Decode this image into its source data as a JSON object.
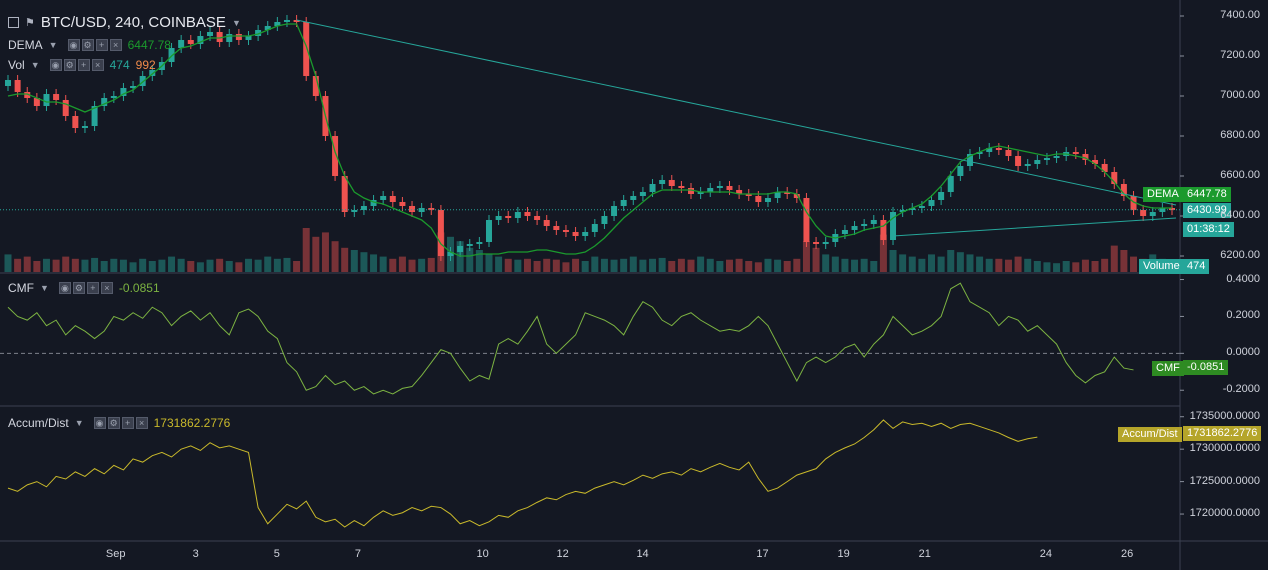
{
  "header": {
    "symbol_title": "BTC/USD, 240, COINBASE",
    "ind_dema": "DEMA",
    "ind_dema_value": "6447.78",
    "ind_vol": "Vol",
    "ind_vol_value_a": "474",
    "ind_vol_value_b": "992"
  },
  "cmf_pane": {
    "label": "CMF",
    "value": "-0.0851",
    "tag": "CMF",
    "tag_value": "-0.0851"
  },
  "ad_pane": {
    "label": "Accum/Dist",
    "value": "1731862.2776",
    "tag": "Accum/Dist",
    "tag_value": "1731862.2776"
  },
  "price_tags": {
    "dema_label": "DEMA",
    "dema_value": "6447.78",
    "last_price": "6430.99",
    "countdown": "01:38:12",
    "volume_label": "Volume",
    "volume_value": "474"
  },
  "colors": {
    "up": "#26a69a",
    "down": "#ef5350",
    "dema": "#1b9a2d",
    "trend": "#26a69a",
    "cmf": "#7cb342",
    "ad": "#c9b92b"
  },
  "chart_data": [
    {
      "type": "candlestick",
      "title": "BTC/USD, 240, COINBASE",
      "ylim": [
        6120,
        7450
      ],
      "y_ticks": [
        "7400.00",
        "7200.00",
        "7000.00",
        "6800.00",
        "6600.00",
        "6400.00",
        "6200.00"
      ],
      "x_ticks": [
        "Sep",
        "3",
        "5",
        "7",
        "10",
        "12",
        "14",
        "17",
        "19",
        "21",
        "24",
        "26"
      ],
      "close": [
        7080,
        7020,
        6990,
        6950,
        7010,
        6980,
        6900,
        6840,
        6850,
        6950,
        6990,
        7000,
        7040,
        7050,
        7100,
        7130,
        7170,
        7240,
        7280,
        7260,
        7300,
        7320,
        7270,
        7310,
        7280,
        7300,
        7330,
        7350,
        7370,
        7380,
        7370,
        7100,
        7000,
        6800,
        6600,
        6420,
        6430,
        6450,
        6480,
        6500,
        6470,
        6450,
        6420,
        6440,
        6430,
        6200,
        6220,
        6250,
        6260,
        6270,
        6380,
        6400,
        6390,
        6420,
        6400,
        6380,
        6350,
        6330,
        6320,
        6300,
        6320,
        6360,
        6400,
        6450,
        6480,
        6500,
        6520,
        6560,
        6580,
        6550,
        6540,
        6510,
        6520,
        6540,
        6550,
        6530,
        6510,
        6500,
        6470,
        6490,
        6520,
        6510,
        6490,
        6270,
        6260,
        6270,
        6310,
        6330,
        6350,
        6360,
        6380,
        6280,
        6420,
        6430,
        6440,
        6450,
        6480,
        6520,
        6600,
        6650,
        6710,
        6720,
        6740,
        6730,
        6700,
        6650,
        6660,
        6680,
        6690,
        6700,
        6720,
        6710,
        6680,
        6660,
        6620,
        6560,
        6500,
        6430,
        6400,
        6420,
        6440,
        6430
      ],
      "ema_overlay": [
        7000,
        7010,
        7010,
        6990,
        6970,
        6970,
        6960,
        6940,
        6920,
        6940,
        6960,
        6980,
        7010,
        7030,
        7070,
        7110,
        7150,
        7200,
        7240,
        7250,
        7270,
        7290,
        7290,
        7300,
        7300,
        7300,
        7310,
        7330,
        7350,
        7360,
        7360,
        7250,
        7100,
        6900,
        6720,
        6600,
        6520,
        6490,
        6470,
        6460,
        6440,
        6420,
        6400,
        6380,
        6340,
        6260,
        6220,
        6200,
        6200,
        6210,
        6210,
        6210,
        6220,
        6220,
        6220,
        6230,
        6230,
        6220,
        6210,
        6210,
        6220,
        6250,
        6290,
        6340,
        6390,
        6430,
        6470,
        6510,
        6530,
        6530,
        6530,
        6530,
        6520,
        6520,
        6520,
        6520,
        6510,
        6510,
        6510,
        6510,
        6520,
        6520,
        6510,
        6420,
        6350,
        6300,
        6290,
        6300,
        6310,
        6330,
        6340,
        6350,
        6390,
        6420,
        6440,
        6460,
        6500,
        6550,
        6610,
        6670,
        6700,
        6720,
        6740,
        6750,
        6740,
        6730,
        6720,
        6710,
        6700,
        6710,
        6710,
        6700,
        6690,
        6660,
        6620,
        6570,
        6510,
        6470,
        6450,
        6440,
        6440,
        6440
      ],
      "volume": [
        0.4,
        0.3,
        0.35,
        0.25,
        0.3,
        0.28,
        0.35,
        0.3,
        0.28,
        0.32,
        0.25,
        0.3,
        0.28,
        0.22,
        0.3,
        0.25,
        0.28,
        0.35,
        0.3,
        0.25,
        0.22,
        0.28,
        0.3,
        0.25,
        0.22,
        0.3,
        0.28,
        0.35,
        0.3,
        0.32,
        0.25,
        1.0,
        0.8,
        0.9,
        0.7,
        0.55,
        0.5,
        0.45,
        0.4,
        0.35,
        0.3,
        0.35,
        0.28,
        0.3,
        0.32,
        0.9,
        0.8,
        0.7,
        0.55,
        0.5,
        0.4,
        0.35,
        0.3,
        0.28,
        0.3,
        0.25,
        0.3,
        0.28,
        0.22,
        0.3,
        0.25,
        0.35,
        0.3,
        0.28,
        0.3,
        0.35,
        0.28,
        0.3,
        0.32,
        0.25,
        0.3,
        0.28,
        0.35,
        0.3,
        0.25,
        0.28,
        0.3,
        0.25,
        0.22,
        0.3,
        0.28,
        0.25,
        0.3,
        0.7,
        0.55,
        0.4,
        0.35,
        0.3,
        0.28,
        0.3,
        0.25,
        0.85,
        0.5,
        0.4,
        0.35,
        0.3,
        0.4,
        0.35,
        0.5,
        0.45,
        0.4,
        0.35,
        0.3,
        0.3,
        0.28,
        0.35,
        0.3,
        0.25,
        0.22,
        0.2,
        0.25,
        0.22,
        0.28,
        0.25,
        0.3,
        0.6,
        0.5,
        0.35,
        0.3,
        0.4,
        0.3,
        0.25
      ]
    },
    {
      "type": "line",
      "title": "CMF",
      "ylim": [
        -0.28,
        0.43
      ],
      "y_ticks": [
        "0.4000",
        "0.2000",
        "0.0000",
        "-0.2000"
      ],
      "values": [
        0.25,
        0.2,
        0.18,
        0.22,
        0.15,
        0.18,
        0.1,
        0.15,
        0.12,
        0.08,
        0.12,
        0.2,
        0.18,
        0.22,
        0.19,
        0.25,
        0.22,
        0.15,
        0.2,
        0.23,
        0.18,
        0.22,
        0.15,
        0.1,
        0.22,
        0.24,
        0.2,
        0.12,
        0.08,
        -0.05,
        -0.1,
        -0.2,
        -0.18,
        -0.12,
        -0.17,
        -0.15,
        -0.2,
        -0.18,
        -0.22,
        -0.2,
        -0.22,
        -0.19,
        -0.18,
        -0.12,
        -0.05,
        0.02,
        0.0,
        -0.08,
        -0.15,
        -0.12,
        -0.14,
        0.05,
        0.08,
        0.05,
        0.12,
        0.2,
        0.05,
        0.0,
        0.05,
        0.1,
        0.22,
        0.2,
        0.18,
        0.15,
        0.1,
        0.2,
        0.28,
        0.25,
        0.18,
        0.15,
        0.2,
        0.22,
        0.18,
        0.15,
        0.12,
        0.13,
        0.12,
        0.15,
        0.2,
        0.15,
        0.05,
        -0.05,
        -0.15,
        -0.05,
        -0.02,
        -0.05,
        -0.02,
        0.03,
        0.05,
        -0.02,
        0.05,
        0.1,
        0.2,
        0.15,
        0.1,
        0.12,
        0.15,
        0.2,
        0.35,
        0.38,
        0.28,
        0.25,
        0.22,
        0.15,
        0.2,
        0.18,
        0.12,
        0.15,
        0.1,
        0.05,
        -0.05,
        -0.12,
        -0.16,
        -0.12,
        -0.1,
        -0.02,
        -0.08,
        -0.09
      ],
      "current_value": "-0.0851"
    },
    {
      "type": "line",
      "title": "Accum/Dist",
      "ylim": [
        1716000,
        1736500
      ],
      "y_ticks": [
        "1735000.0000",
        "1730000.0000",
        "1725000.0000",
        "1720000.0000"
      ],
      "values": [
        1724000,
        1723500,
        1724500,
        1725000,
        1724200,
        1725800,
        1725400,
        1726500,
        1725800,
        1727000,
        1726200,
        1727500,
        1726800,
        1728500,
        1728000,
        1729000,
        1729500,
        1728800,
        1730000,
        1730500,
        1729800,
        1731000,
        1730200,
        1730500,
        1730000,
        1729500,
        1721000,
        1718500,
        1720000,
        1721500,
        1720800,
        1722000,
        1719500,
        1718800,
        1719200,
        1718000,
        1719000,
        1718200,
        1719500,
        1720500,
        1719800,
        1720200,
        1721000,
        1720500,
        1721200,
        1721000,
        1720000,
        1718500,
        1719000,
        1718200,
        1718800,
        1719800,
        1719500,
        1720500,
        1721000,
        1721800,
        1722500,
        1722200,
        1723000,
        1723500,
        1723200,
        1724000,
        1724500,
        1725000,
        1724500,
        1725200,
        1726000,
        1725500,
        1726200,
        1726500,
        1726000,
        1727000,
        1726500,
        1727200,
        1727800,
        1727200,
        1726800,
        1728000,
        1725500,
        1723500,
        1724000,
        1725000,
        1726000,
        1726500,
        1727000,
        1728500,
        1729500,
        1730200,
        1730800,
        1731800,
        1733000,
        1734500,
        1733200,
        1734200,
        1733800,
        1734000,
        1733500,
        1734000,
        1733200,
        1733800,
        1734000,
        1733500,
        1733000,
        1732500,
        1731800,
        1731200,
        1731600,
        1731862
      ]
    }
  ]
}
